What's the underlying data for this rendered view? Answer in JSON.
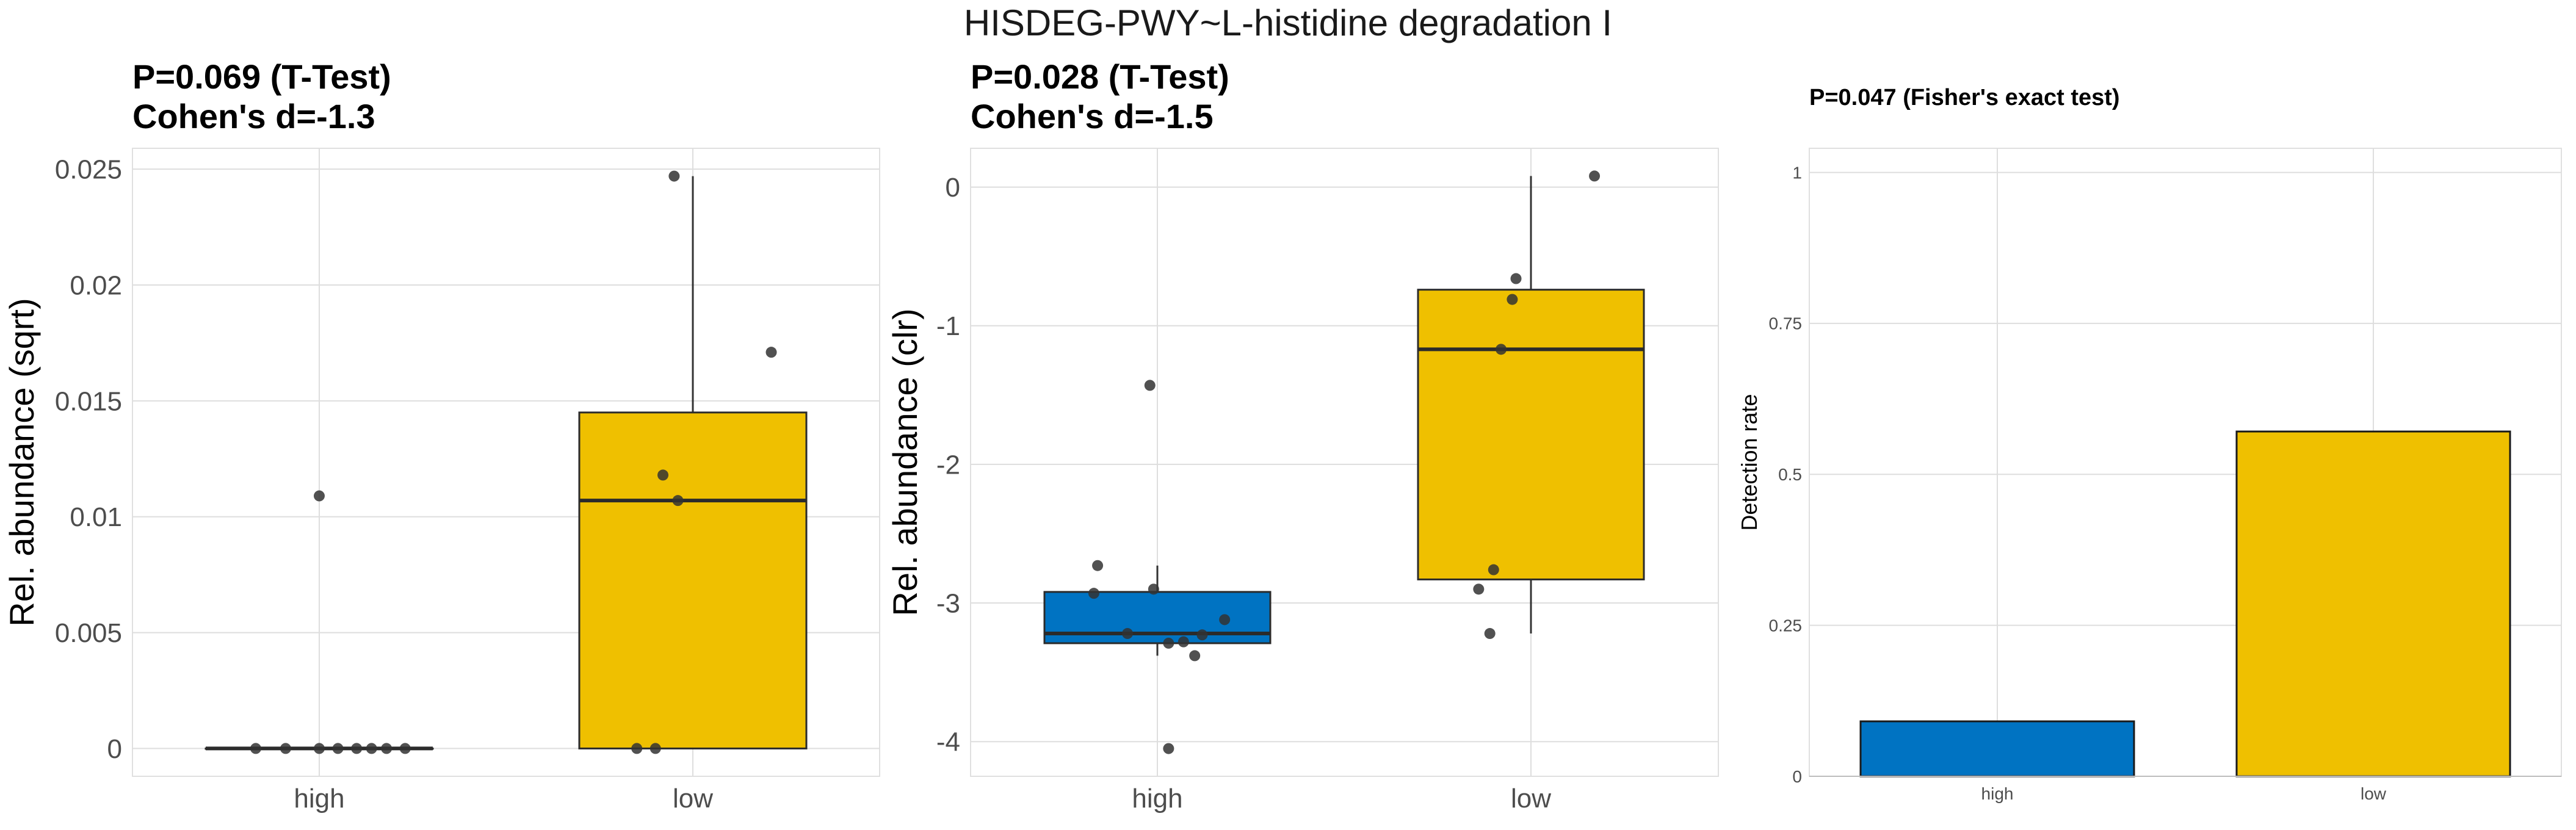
{
  "figure_title": "HISDEG-PWY~L-histidine degradation I",
  "colors": {
    "high": "#0073C2",
    "low": "#EFC000",
    "point": "#333333",
    "grid": "#DEDEDE",
    "border": "#E0E0E0"
  },
  "chart_data": [
    {
      "type": "box",
      "subtitle_line1": "P=0.069 (T-Test)",
      "subtitle_line2": "Cohen's d=-1.3",
      "ylabel": "Rel. abundance (sqrt)",
      "ylim": [
        -0.0012,
        0.0259
      ],
      "yticks": [
        0,
        0.005,
        0.01,
        0.015,
        0.02,
        0.025
      ],
      "ytick_labels": [
        "0",
        "0.005",
        "0.01",
        "0.015",
        "0.02",
        "0.025"
      ],
      "categories": [
        "high",
        "low"
      ],
      "boxes": [
        {
          "name": "high",
          "whisker_low": 0,
          "q1": 0,
          "median": 0,
          "q3": 0,
          "whisker_high": 0
        },
        {
          "name": "low",
          "whisker_low": 0,
          "q1": 0,
          "median": 0.0107,
          "q3": 0.0145,
          "whisker_high": 0.0247
        }
      ],
      "points": [
        {
          "group": "high",
          "jitter": -0.17,
          "value": 0
        },
        {
          "group": "high",
          "jitter": -0.09,
          "value": 0
        },
        {
          "group": "high",
          "jitter": 0.0,
          "value": 0
        },
        {
          "group": "high",
          "jitter": 0.05,
          "value": 0
        },
        {
          "group": "high",
          "jitter": 0.1,
          "value": 0
        },
        {
          "group": "high",
          "jitter": 0.14,
          "value": 0
        },
        {
          "group": "high",
          "jitter": 0.18,
          "value": 0
        },
        {
          "group": "high",
          "jitter": 0.23,
          "value": 0
        },
        {
          "group": "high",
          "jitter": 0.0,
          "value": 0.0109
        },
        {
          "group": "low",
          "jitter": -0.05,
          "value": 0.0247
        },
        {
          "group": "low",
          "jitter": 0.21,
          "value": 0.0171
        },
        {
          "group": "low",
          "jitter": -0.08,
          "value": 0.0118
        },
        {
          "group": "low",
          "jitter": -0.04,
          "value": 0.0107
        },
        {
          "group": "low",
          "jitter": -0.15,
          "value": 0
        },
        {
          "group": "low",
          "jitter": -0.1,
          "value": 0
        }
      ]
    },
    {
      "type": "box",
      "subtitle_line1": "P=0.028 (T-Test)",
      "subtitle_line2": "Cohen's d=-1.5",
      "ylabel": "Rel. abundance (clr)",
      "ylim": [
        -4.25,
        0.28
      ],
      "yticks": [
        -4,
        -3,
        -2,
        -1,
        0
      ],
      "ytick_labels": [
        "-4",
        "-3",
        "-2",
        "-1",
        "0"
      ],
      "categories": [
        "high",
        "low"
      ],
      "boxes": [
        {
          "name": "high",
          "whisker_low": -3.38,
          "q1": -3.29,
          "median": -3.22,
          "q3": -2.92,
          "whisker_high": -2.73
        },
        {
          "name": "low",
          "whisker_low": -3.22,
          "q1": -2.83,
          "median": -1.17,
          "q3": -0.74,
          "whisker_high": 0.08
        }
      ],
      "points": [
        {
          "group": "high",
          "jitter": -0.02,
          "value": -1.43
        },
        {
          "group": "high",
          "jitter": -0.16,
          "value": -2.73
        },
        {
          "group": "high",
          "jitter": -0.17,
          "value": -2.93
        },
        {
          "group": "high",
          "jitter": -0.01,
          "value": -2.9
        },
        {
          "group": "high",
          "jitter": 0.18,
          "value": -3.12
        },
        {
          "group": "high",
          "jitter": -0.08,
          "value": -3.22
        },
        {
          "group": "high",
          "jitter": 0.12,
          "value": -3.23
        },
        {
          "group": "high",
          "jitter": 0.07,
          "value": -3.28
        },
        {
          "group": "high",
          "jitter": 0.03,
          "value": -3.29
        },
        {
          "group": "high",
          "jitter": 0.1,
          "value": -3.38
        },
        {
          "group": "high",
          "jitter": 0.03,
          "value": -4.05
        },
        {
          "group": "low",
          "jitter": 0.17,
          "value": 0.08
        },
        {
          "group": "low",
          "jitter": -0.04,
          "value": -0.66
        },
        {
          "group": "low",
          "jitter": -0.05,
          "value": -0.81
        },
        {
          "group": "low",
          "jitter": -0.08,
          "value": -1.17
        },
        {
          "group": "low",
          "jitter": -0.1,
          "value": -2.76
        },
        {
          "group": "low",
          "jitter": -0.14,
          "value": -2.9
        },
        {
          "group": "low",
          "jitter": -0.11,
          "value": -3.22
        }
      ]
    },
    {
      "type": "bar",
      "subtitle_line1": "P=0.047 (Fisher's exact test)",
      "ylabel": "Detection rate",
      "ylim": [
        0,
        1.04
      ],
      "yticks": [
        0,
        0.25,
        0.5,
        0.75,
        1
      ],
      "ytick_labels": [
        "0",
        "0.25",
        "0.5",
        "0.75",
        "1"
      ],
      "categories": [
        "high",
        "low"
      ],
      "values": [
        0.091,
        0.571
      ]
    }
  ]
}
